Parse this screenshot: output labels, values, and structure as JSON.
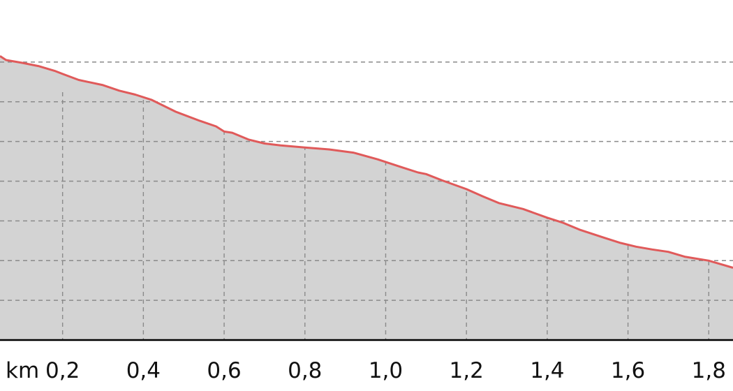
{
  "chart_data": {
    "type": "area",
    "xlabel": "km",
    "x_ticks": [
      "0,2",
      "0,4",
      "0,6",
      "0,8",
      "1,0",
      "1,2",
      "1,4",
      "1,6",
      "1,8"
    ],
    "x_tick_values": [
      0.2,
      0.4,
      0.6,
      0.8,
      1.0,
      1.2,
      1.4,
      1.6,
      1.8
    ],
    "xlim": [
      0.045,
      1.86
    ],
    "ylim": [
      0,
      8
    ],
    "y_gridlines": [
      1,
      2,
      3,
      4,
      5,
      6,
      7
    ],
    "grid": true,
    "series": [
      {
        "line_color": "#e05a5a",
        "fill_color": "#d3d3d3",
        "x": [
          0.045,
          0.06,
          0.1,
          0.14,
          0.18,
          0.2,
          0.24,
          0.3,
          0.34,
          0.38,
          0.42,
          0.48,
          0.54,
          0.58,
          0.6,
          0.62,
          0.66,
          0.7,
          0.74,
          0.8,
          0.86,
          0.92,
          0.98,
          1.04,
          1.08,
          1.1,
          1.14,
          1.2,
          1.24,
          1.28,
          1.34,
          1.4,
          1.44,
          1.48,
          1.54,
          1.58,
          1.62,
          1.66,
          1.7,
          1.74,
          1.8,
          1.86
        ],
        "values": [
          7.15,
          7.05,
          6.98,
          6.9,
          6.78,
          6.7,
          6.55,
          6.42,
          6.28,
          6.18,
          6.05,
          5.75,
          5.52,
          5.38,
          5.25,
          5.22,
          5.05,
          4.95,
          4.9,
          4.85,
          4.8,
          4.72,
          4.55,
          4.35,
          4.22,
          4.18,
          4.02,
          3.8,
          3.62,
          3.45,
          3.3,
          3.08,
          2.95,
          2.78,
          2.58,
          2.45,
          2.35,
          2.28,
          2.22,
          2.1,
          2.0,
          1.82
        ]
      }
    ]
  }
}
